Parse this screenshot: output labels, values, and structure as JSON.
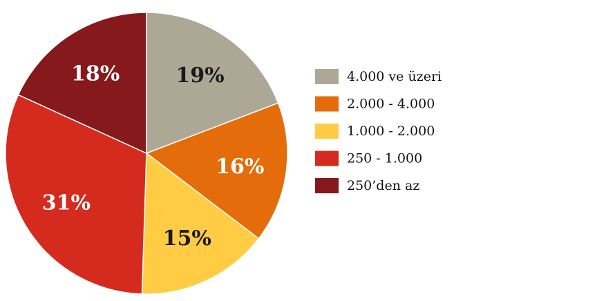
{
  "chart_data": {
    "type": "pie",
    "slices": [
      {
        "label": "4.000 ve üzeri",
        "value": 19,
        "display": "19%",
        "color": "#ada796",
        "text_color": "#1a1a1a"
      },
      {
        "label": "2.000 - 4.000",
        "value": 16,
        "display": "16%",
        "color": "#e46c0a",
        "text_color": "#ffffff"
      },
      {
        "label": "1.000 - 2.000",
        "value": 15,
        "display": "15%",
        "color": "#ffcc44",
        "text_color": "#1a1a1a"
      },
      {
        "label": "250 - 1.000",
        "value": 31,
        "display": "31%",
        "color": "#d52b1e",
        "text_color": "#ffffff"
      },
      {
        "label": "250’den az",
        "value": 18,
        "display": "18%",
        "color": "#85191b",
        "text_color": "#ffffff"
      }
    ],
    "legend": {
      "position": "right"
    },
    "start_angle_deg": 0,
    "direction": "clockwise"
  }
}
